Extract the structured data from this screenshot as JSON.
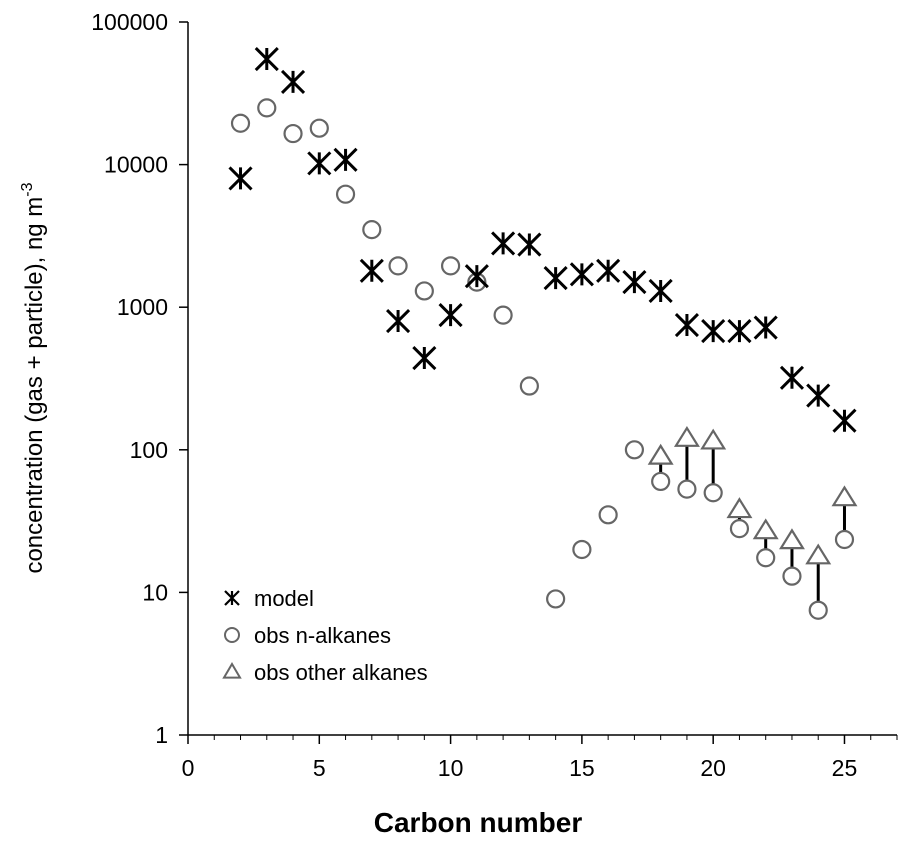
{
  "chart_data": {
    "type": "scatter",
    "title": "",
    "xlabel": "Carbon number",
    "ylabel_main": "concentration (gas + particle), ng m",
    "ylabel_superscript": "-3",
    "xlim": [
      0,
      27
    ],
    "ylim": [
      1,
      100000
    ],
    "yscale": "log",
    "x_ticks": [
      0,
      5,
      10,
      15,
      20,
      25
    ],
    "x_tick_labels": [
      "0",
      "5",
      "10",
      "15",
      "20",
      "25"
    ],
    "y_ticks": [
      1,
      10,
      100,
      1000,
      10000,
      100000
    ],
    "y_tick_labels": [
      "1",
      "10",
      "100",
      "1000",
      "10000",
      "100000"
    ],
    "grid": false,
    "legend_position": "bottom-left",
    "series": [
      {
        "name": "model",
        "marker": "asterisk",
        "color": "#000000",
        "x": [
          2,
          3,
          4,
          5,
          6,
          7,
          8,
          9,
          10,
          11,
          12,
          13,
          14,
          15,
          16,
          17,
          18,
          19,
          20,
          21,
          22,
          23,
          24,
          25
        ],
        "y": [
          8000,
          55000,
          38000,
          10200,
          10800,
          1800,
          800,
          440,
          880,
          1650,
          2800,
          2750,
          1600,
          1700,
          1800,
          1500,
          1300,
          750,
          680,
          680,
          720,
          320,
          240,
          160
        ]
      },
      {
        "name": "obs n-alkanes",
        "marker": "circle",
        "color": "#666666",
        "x": [
          2,
          3,
          4,
          5,
          6,
          7,
          8,
          9,
          10,
          11,
          12,
          13,
          14,
          15,
          16,
          17,
          18,
          19,
          20,
          21,
          22,
          23,
          24,
          25
        ],
        "y": [
          19500,
          25000,
          16500,
          18000,
          6200,
          3500,
          1950,
          1300,
          1950,
          1500,
          880,
          280,
          9,
          20,
          35,
          100,
          60,
          53,
          50,
          28,
          17.5,
          13,
          7.5,
          23.5
        ]
      },
      {
        "name": "obs other alkanes",
        "marker": "triangle",
        "color": "#666666",
        "x": [
          18,
          19,
          20,
          21,
          22,
          23,
          24,
          25
        ],
        "y": [
          90,
          120,
          115,
          38,
          27,
          23,
          18,
          46
        ]
      }
    ]
  }
}
